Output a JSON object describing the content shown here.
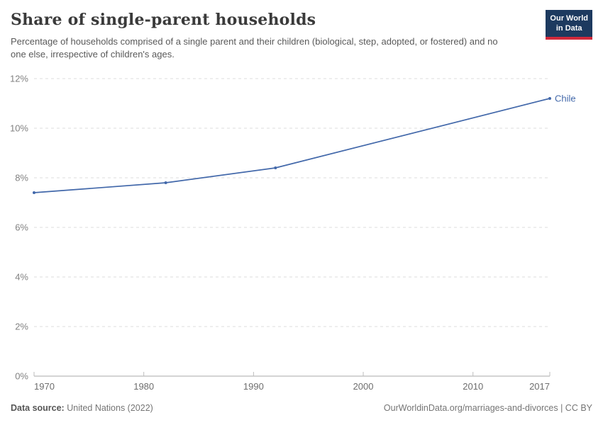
{
  "header": {
    "title": "Share of single-parent households",
    "subtitle": "Percentage of households comprised of a single parent and their children (biological, step, adopted, or fostered) and no one else, irrespective of children's ages.",
    "logo": {
      "line1": "Our World",
      "line2": "in Data"
    }
  },
  "chart_data": {
    "type": "line",
    "title": "Share of single-parent households",
    "unit": "%",
    "x": [
      1970,
      1982,
      1992,
      2017
    ],
    "series": [
      {
        "name": "Chile",
        "values": [
          7.4,
          7.8,
          8.4,
          11.2
        ],
        "color": "#4268aa"
      }
    ],
    "end_label": "Chile",
    "xlim": [
      1970,
      2017
    ],
    "ylim": [
      0,
      12
    ],
    "x_ticks": [
      1970,
      1980,
      1990,
      2000,
      2010,
      2017
    ],
    "x_tick_labels": [
      "1970",
      "1980",
      "1990",
      "2000",
      "2010",
      "2017"
    ],
    "y_ticks": [
      0,
      2,
      4,
      6,
      8,
      10,
      12
    ],
    "y_tick_labels": [
      "0%",
      "2%",
      "4%",
      "6%",
      "8%",
      "10%",
      "12%"
    ],
    "grid": "horizontal-dashed",
    "legend_position": "line-end-label"
  },
  "footer": {
    "source_label": "Data source:",
    "source_value": "United Nations (2022)",
    "credit": "OurWorldinData.org/marriages-and-divorces | CC BY"
  },
  "colors": {
    "line": "#4268aa",
    "grid": "#dedede",
    "axis": "#a8a8a8",
    "tick": "#bdbdbd",
    "y_label": "#828282",
    "x_label": "#6e6e6e",
    "title": "#3a3a3a",
    "subtitle": "#595959",
    "footer_text": "#757575",
    "logo_bg": "#1d3a5f",
    "logo_accent": "#d0293b"
  }
}
